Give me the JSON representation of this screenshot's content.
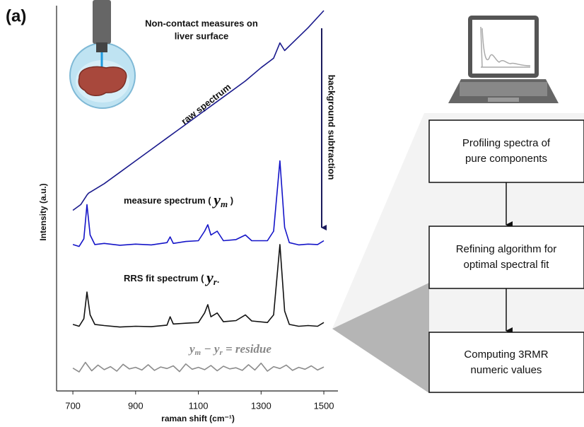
{
  "panel_label": "(a)",
  "inset_caption": [
    "Non-contact measures on",
    "liver surface"
  ],
  "steps": [
    [
      "Profiling spectra of",
      "pure components"
    ],
    [
      "Refining algorithm for",
      "optimal spectral fit"
    ],
    [
      "Computing 3RMR",
      "numeric values"
    ]
  ],
  "chart_data": {
    "type": "line",
    "xlabel": "raman shift (cm⁻¹)",
    "ylabel": "Intensity  (a.u.)",
    "xlim": [
      648,
      1545
    ],
    "xticks": [
      700,
      900,
      1100,
      1300,
      1500
    ],
    "ylim": [
      0,
      100
    ],
    "annotations": {
      "raw": "raw spectrum",
      "subtraction": "background subtraction",
      "measure": [
        "measure spectrum (",
        "y",
        "m",
        ")"
      ],
      "fit": [
        "RRS fit spectrum (",
        "y",
        "r·"
      ],
      "residue": [
        "y",
        "m",
        " − ",
        "y",
        "r",
        " = residue"
      ]
    },
    "series": [
      {
        "color": "#1a1a8c",
        "x": [
          700,
          725,
          745,
          750,
          800,
          850,
          900,
          950,
          1000,
          1050,
          1100,
          1150,
          1200,
          1250,
          1300,
          1340,
          1360,
          1375,
          1400,
          1450,
          1500
        ],
        "values": [
          47.5,
          49,
          51.5,
          52,
          54.5,
          57.5,
          60.5,
          63.5,
          66.5,
          69.5,
          72.5,
          75.5,
          78.5,
          81.5,
          85,
          87.5,
          91.5,
          89.5,
          91.5,
          95.5,
          100
        ]
      },
      {
        "color": "#1414c8",
        "x": [
          700,
          720,
          735,
          745,
          755,
          770,
          800,
          850,
          900,
          950,
          1000,
          1010,
          1020,
          1060,
          1100,
          1120,
          1130,
          1140,
          1160,
          1180,
          1220,
          1250,
          1270,
          1320,
          1340,
          1360,
          1375,
          1390,
          1420,
          1450,
          1480,
          1500
        ],
        "values": [
          38.5,
          38,
          40,
          49,
          41,
          38.5,
          38.8,
          38.3,
          38.6,
          38.4,
          39,
          40.5,
          38.8,
          39.3,
          39.5,
          42,
          43.7,
          41,
          42,
          39.5,
          39.8,
          41,
          39.5,
          39.5,
          42,
          60.5,
          43,
          39,
          38.4,
          38.6,
          38.5,
          39.5
        ]
      },
      {
        "color": "#111111",
        "x": [
          700,
          720,
          735,
          745,
          755,
          770,
          800,
          850,
          900,
          950,
          1000,
          1010,
          1020,
          1060,
          1100,
          1120,
          1130,
          1140,
          1160,
          1180,
          1220,
          1250,
          1270,
          1320,
          1340,
          1360,
          1375,
          1390,
          1420,
          1450,
          1480,
          1500
        ],
        "values": [
          17.5,
          17,
          19,
          26,
          20,
          17.5,
          17.2,
          16.8,
          17,
          16.9,
          17.3,
          19.5,
          17.6,
          17.8,
          18,
          20.5,
          22.7,
          19.5,
          20.5,
          18.2,
          18.5,
          20,
          18.4,
          18,
          20,
          38.5,
          21,
          17.5,
          17,
          17.2,
          17,
          18
        ]
      },
      {
        "color": "#8c8c8c",
        "x": [
          700,
          720,
          740,
          760,
          780,
          800,
          820,
          840,
          860,
          880,
          900,
          920,
          940,
          960,
          980,
          1000,
          1020,
          1040,
          1060,
          1080,
          1100,
          1120,
          1140,
          1160,
          1180,
          1200,
          1220,
          1240,
          1260,
          1280,
          1300,
          1320,
          1340,
          1360,
          1380,
          1400,
          1420,
          1440,
          1460,
          1480,
          1500
        ],
        "values": [
          6,
          5,
          7.5,
          5.3,
          6.8,
          5.6,
          6.4,
          5.2,
          7,
          5.8,
          6.2,
          5.5,
          6.9,
          5.4,
          6.3,
          5.9,
          6.6,
          5.1,
          7.1,
          5.7,
          6.2,
          5.6,
          6.7,
          5.3,
          6.5,
          5.8,
          6.1,
          5.4,
          6.9,
          5.5,
          7.3,
          5.2,
          6.4,
          5.9,
          6.8,
          5.4,
          6.2,
          5.7,
          6.6,
          5.5,
          6.3
        ]
      }
    ]
  }
}
